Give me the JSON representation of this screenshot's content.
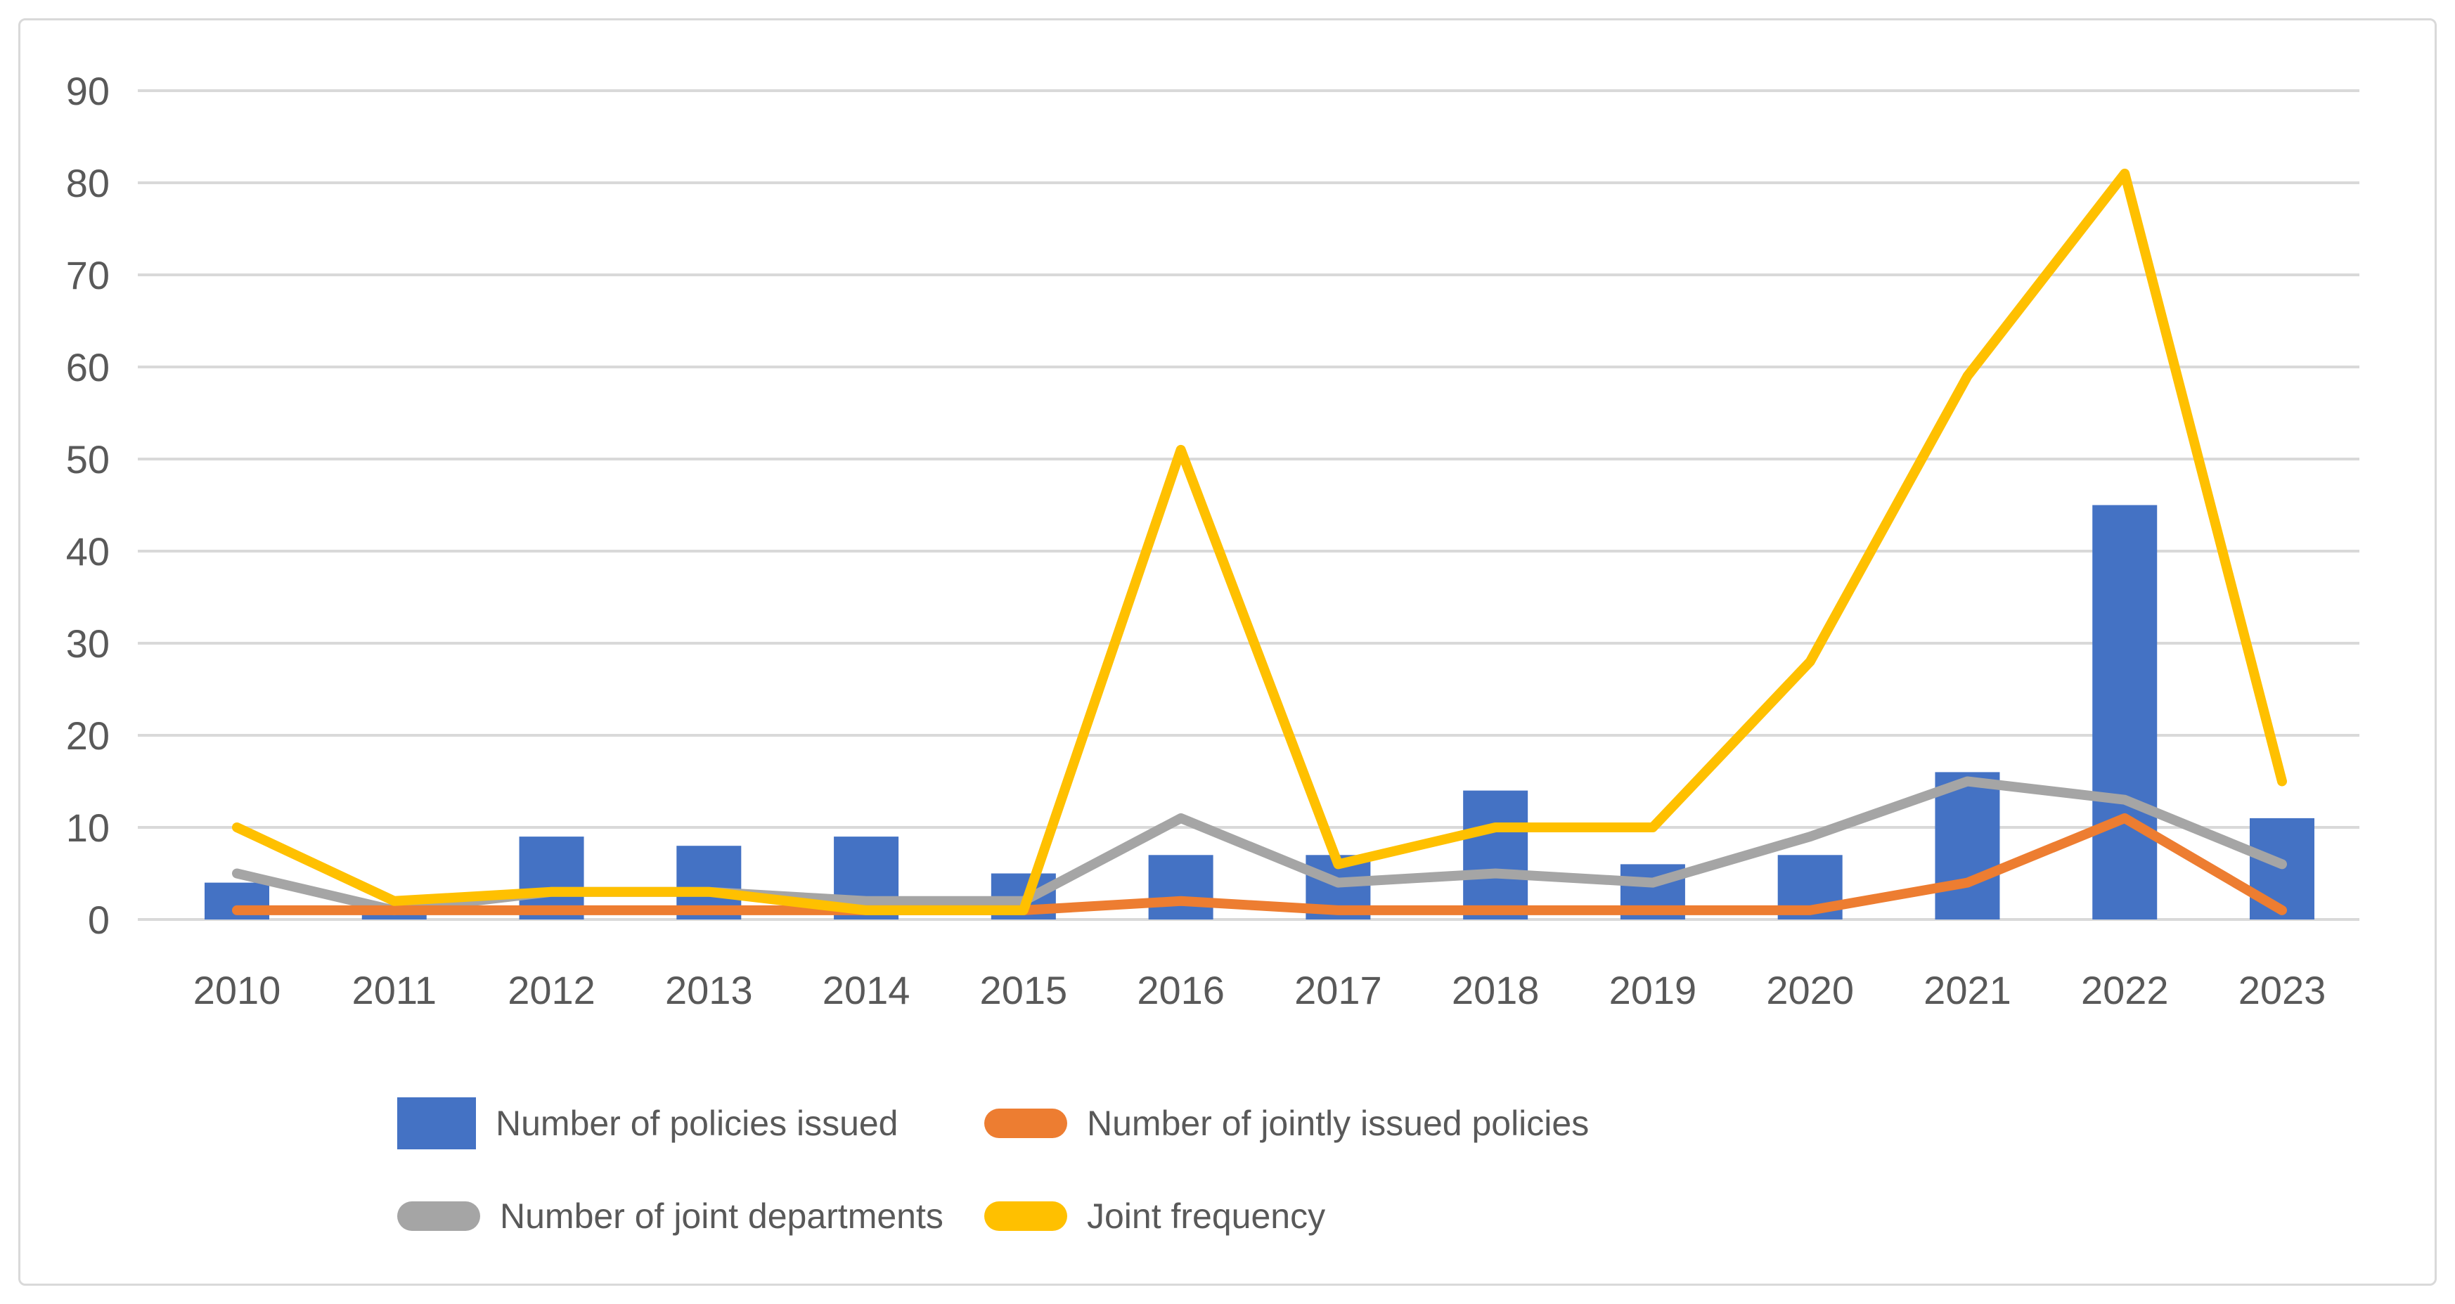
{
  "chart_data": {
    "type": "combo",
    "title": "",
    "xlabel": "",
    "ylabel": "",
    "categories": [
      "2010",
      "2011",
      "2012",
      "2013",
      "2014",
      "2015",
      "2016",
      "2017",
      "2018",
      "2019",
      "2020",
      "2021",
      "2022",
      "2023"
    ],
    "series": [
      {
        "name": "Number of policies issued",
        "type": "bar",
        "color": "#4472C4",
        "values": [
          4,
          1,
          9,
          8,
          9,
          5,
          7,
          7,
          14,
          6,
          7,
          16,
          45,
          11
        ]
      },
      {
        "name": "Number of jointly issued policies",
        "type": "line",
        "color": "#ED7D31",
        "values": [
          1,
          1,
          1,
          1,
          1,
          1,
          2,
          1,
          1,
          1,
          1,
          4,
          11,
          1
        ]
      },
      {
        "name": "Number of joint departments",
        "type": "line",
        "color": "#A5A5A5",
        "values": [
          5,
          1,
          3,
          3,
          2,
          2,
          11,
          4,
          5,
          4,
          9,
          15,
          13,
          6
        ]
      },
      {
        "name": "Joint frequency",
        "type": "line",
        "color": "#FFC000",
        "values": [
          10,
          2,
          3,
          3,
          1,
          1,
          51,
          6,
          10,
          10,
          28,
          59,
          81,
          15
        ]
      }
    ],
    "ylim": [
      0,
      90
    ],
    "ytick_step": 10,
    "yticks": [
      0,
      10,
      20,
      30,
      40,
      50,
      60,
      70,
      80,
      90
    ],
    "grid": true,
    "legend_position": "bottom",
    "colors": {
      "grid": "#D9D9D9",
      "axis_text": "#595959",
      "frame_border": "#D9D9D9",
      "background": "#FFFFFF"
    }
  }
}
